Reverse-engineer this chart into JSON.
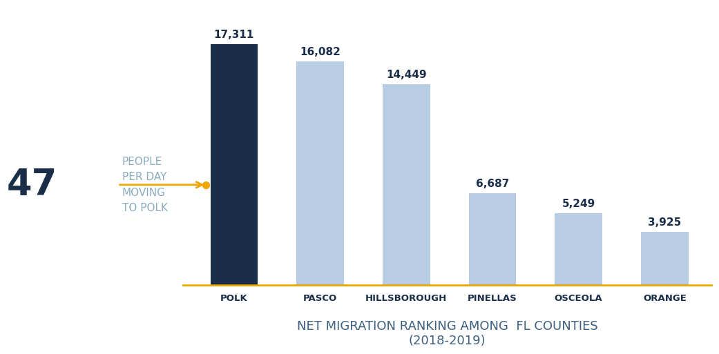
{
  "categories": [
    "POLK",
    "PASCO",
    "HILLSBOROUGH",
    "PINELLAS",
    "OSCEOLA",
    "ORANGE"
  ],
  "values": [
    17311,
    16082,
    14449,
    6687,
    5249,
    3925
  ],
  "labels": [
    "17,311",
    "16,082",
    "14,449",
    "6,687",
    "5,249",
    "3,925"
  ],
  "bar_colors": [
    "#1a2e4a",
    "#b8cce4",
    "#b8cce4",
    "#b8cce4",
    "#b8cce4",
    "#b8cce4"
  ],
  "background_color": "#ffffff",
  "baseline_color": "#f0a500",
  "annotation_number": "47",
  "annotation_text": "PEOPLE\nPER DAY\nMOVING\nTO POLK",
  "annotation_number_color": "#1a2e4a",
  "annotation_text_color": "#8aabbf",
  "arrow_color": "#f0a500",
  "xlabel": "NET MIGRATION RANKING AMONG  FL COUNTIES\n(2018-2019)",
  "xlabel_color": "#3d6080",
  "tick_label_color": "#1a2e4a",
  "value_label_color": "#1a2e4a",
  "ylim": [
    0,
    20000
  ],
  "bar_width": 0.55
}
